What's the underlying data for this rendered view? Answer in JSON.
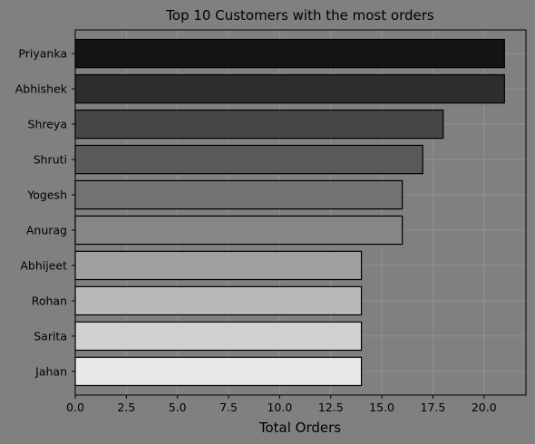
{
  "chart_data": {
    "type": "bar",
    "orientation": "horizontal",
    "title": "Top 10 Customers with the most orders",
    "xlabel": "Total Orders",
    "ylabel": "",
    "categories": [
      "Priyanka",
      "Abhishek",
      "Shreya",
      "Shruti",
      "Yogesh",
      "Anurag",
      "Abhijeet",
      "Rohan",
      "Sarita",
      "Jahan"
    ],
    "values": [
      21,
      21,
      18,
      17,
      16,
      16,
      14,
      14,
      14,
      14
    ],
    "bar_colors": [
      "#141414",
      "#2d2d2d",
      "#464646",
      "#5a5a5a",
      "#727272",
      "#868686",
      "#a0a0a0",
      "#b8b8b8",
      "#d0d0d0",
      "#e8e8e8"
    ],
    "xlim": [
      0,
      22.05
    ],
    "xticks": [
      0,
      2.5,
      5,
      7.5,
      10,
      12.5,
      15,
      17.5,
      20
    ],
    "xtick_labels": [
      "0.0",
      "2.5",
      "5.0",
      "7.5",
      "10.0",
      "12.5",
      "15.0",
      "17.5",
      "20.0"
    ],
    "grid": true,
    "legend": "none",
    "colors": {
      "figure_background": "#808080",
      "axes_background": "#808080",
      "bar_edge": "#000000",
      "grid": "#a6a6a6"
    }
  }
}
